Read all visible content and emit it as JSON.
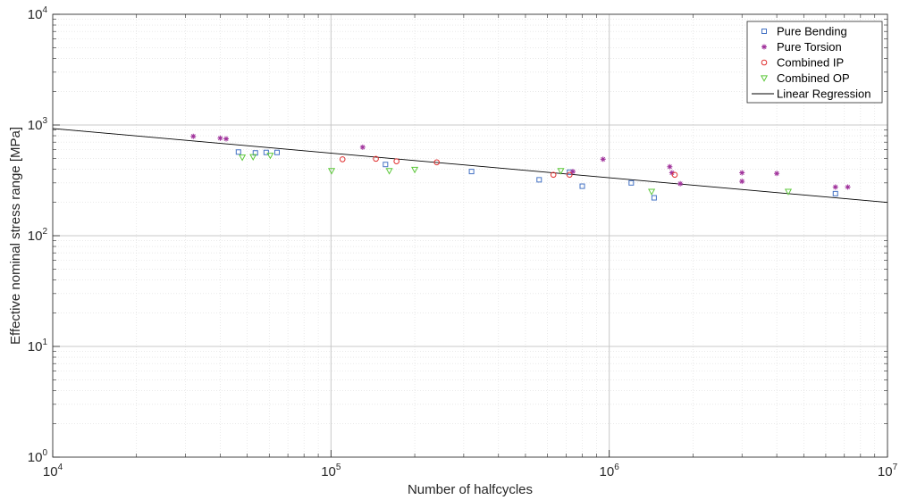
{
  "chart_data": {
    "type": "scatter",
    "xlabel": "Number of halfcycles",
    "ylabel": "Effective nominal stress range [MPa]",
    "xscale": "log",
    "yscale": "log",
    "xlim": [
      10000,
      10000000
    ],
    "ylim": [
      1,
      10000
    ],
    "x_ticks": [
      {
        "base": "10",
        "exp": "4",
        "value": 10000
      },
      {
        "base": "10",
        "exp": "5",
        "value": 100000
      },
      {
        "base": "10",
        "exp": "6",
        "value": 1000000
      },
      {
        "base": "10",
        "exp": "7",
        "value": 10000000
      }
    ],
    "y_ticks": [
      {
        "base": "10",
        "exp": "0",
        "value": 1
      },
      {
        "base": "10",
        "exp": "1",
        "value": 10
      },
      {
        "base": "10",
        "exp": "2",
        "value": 100
      },
      {
        "base": "10",
        "exp": "3",
        "value": 1000
      },
      {
        "base": "10",
        "exp": "4",
        "value": 10000
      }
    ],
    "grid": true,
    "minor_grid": true,
    "legend_position": "top-right",
    "series": [
      {
        "name": "Pure Bending",
        "marker": "square",
        "color": "#4472C4",
        "points": [
          [
            46500,
            570
          ],
          [
            53500,
            560
          ],
          [
            58500,
            565
          ],
          [
            64000,
            565
          ],
          [
            157000,
            440
          ],
          [
            320000,
            380
          ],
          [
            560000,
            320
          ],
          [
            720000,
            375
          ],
          [
            800000,
            280
          ],
          [
            1200000,
            300
          ],
          [
            1450000,
            220
          ],
          [
            6500000,
            240
          ]
        ]
      },
      {
        "name": "Pure Torsion",
        "marker": "asterisk",
        "color": "#A0329B",
        "points": [
          [
            32000,
            790
          ],
          [
            40000,
            760
          ],
          [
            42000,
            750
          ],
          [
            130000,
            630
          ],
          [
            740000,
            380
          ],
          [
            950000,
            490
          ],
          [
            1650000,
            420
          ],
          [
            1680000,
            370
          ],
          [
            1800000,
            295
          ],
          [
            3000000,
            370
          ],
          [
            3000000,
            310
          ],
          [
            4000000,
            365
          ],
          [
            6500000,
            275
          ],
          [
            7200000,
            275
          ]
        ]
      },
      {
        "name": "Combined IP",
        "marker": "circle",
        "color": "#E03030",
        "points": [
          [
            110000,
            490
          ],
          [
            145000,
            495
          ],
          [
            172000,
            470
          ],
          [
            240000,
            460
          ],
          [
            630000,
            355
          ],
          [
            720000,
            355
          ],
          [
            1720000,
            355
          ]
        ]
      },
      {
        "name": "Combined OP",
        "marker": "triangle-down",
        "color": "#5CC83A",
        "points": [
          [
            48000,
            510
          ],
          [
            52500,
            515
          ],
          [
            60500,
            530
          ],
          [
            100500,
            385
          ],
          [
            162000,
            385
          ],
          [
            200000,
            395
          ],
          [
            670000,
            385
          ],
          [
            1420000,
            250
          ],
          [
            4400000,
            250
          ]
        ]
      }
    ],
    "regression": {
      "name": "Linear Regression",
      "color": "#000000",
      "points": [
        [
          10000,
          930
        ],
        [
          10000000,
          200
        ]
      ]
    }
  }
}
